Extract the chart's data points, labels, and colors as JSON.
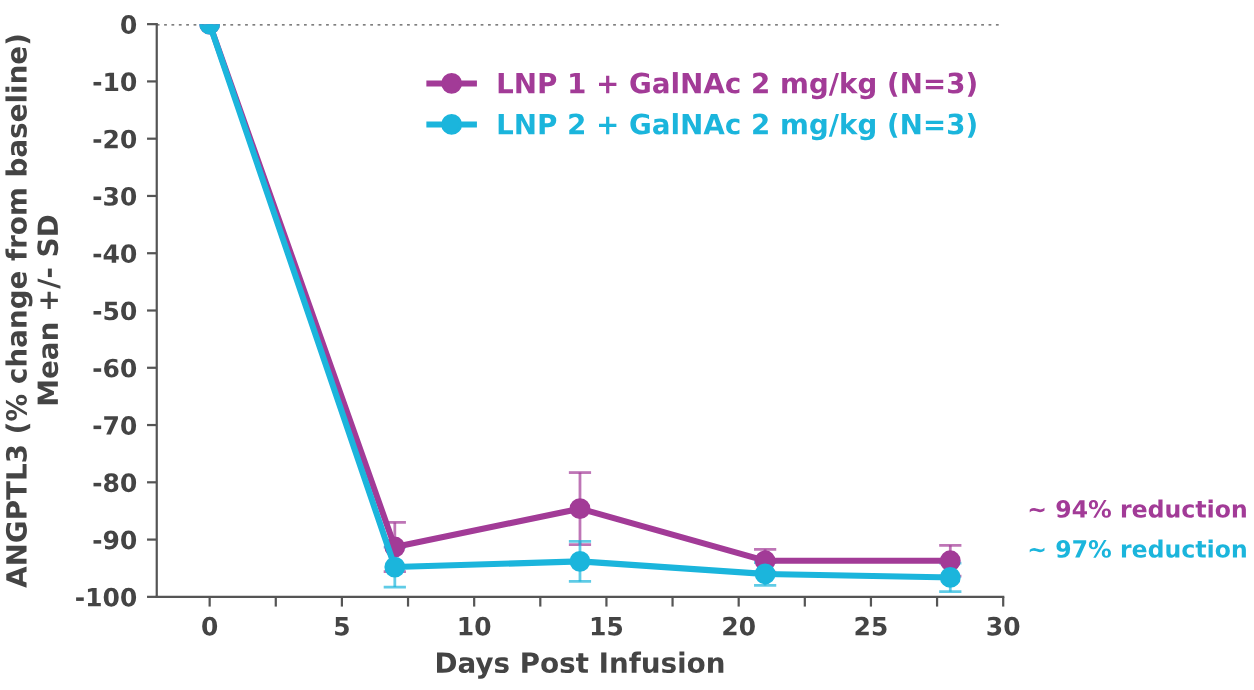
{
  "chart_data": {
    "type": "line",
    "xlabel": "Days Post Infusion",
    "ylabel": "ANGPTL3 (% change from baseline)\nMean +/- SD",
    "x": [
      0,
      7,
      14,
      21,
      28
    ],
    "series": [
      {
        "name": "LNP 1 + GalNAc 2 mg/kg (N=3)",
        "color": "#a23b97",
        "values": [
          0,
          -91.3,
          -84.6,
          -93.7,
          -93.7
        ],
        "errors": [
          null,
          4.3,
          6.3,
          2,
          2.7
        ]
      },
      {
        "name": "LNP 2 + GalNAc 2 mg/kg (N=3)",
        "color": "#1bb5dc",
        "values": [
          0,
          -94.8,
          -93.8,
          -96,
          -96.6
        ],
        "errors": [
          null,
          3.5,
          3.5,
          2,
          2.5
        ]
      }
    ],
    "xlim": [
      -2,
      30
    ],
    "ylim": [
      -100,
      0
    ],
    "xticks": [
      0,
      {
        "value": 2.5,
        "label": null
      },
      5,
      {
        "value": 7.5,
        "label": null
      },
      10,
      {
        "value": 12.5,
        "label": null
      },
      15,
      {
        "value": 17.5,
        "label": null
      },
      20,
      {
        "value": 22.5,
        "label": null
      },
      25,
      {
        "value": 27.5,
        "label": null
      },
      30
    ],
    "yticks": [
      0,
      -10,
      -20,
      -30,
      -40,
      -50,
      -60,
      -70,
      -80,
      -90,
      -100
    ],
    "ref_lines": [
      {
        "axis": "y",
        "value": 0,
        "label": null,
        "color": "#555555",
        "line_style": "dotted"
      }
    ],
    "annotations": [
      "~ 94% reduction",
      "~ 97% reduction"
    ],
    "marker": "circle",
    "line_style": "solid",
    "legend": "top right",
    "grid": false
  }
}
